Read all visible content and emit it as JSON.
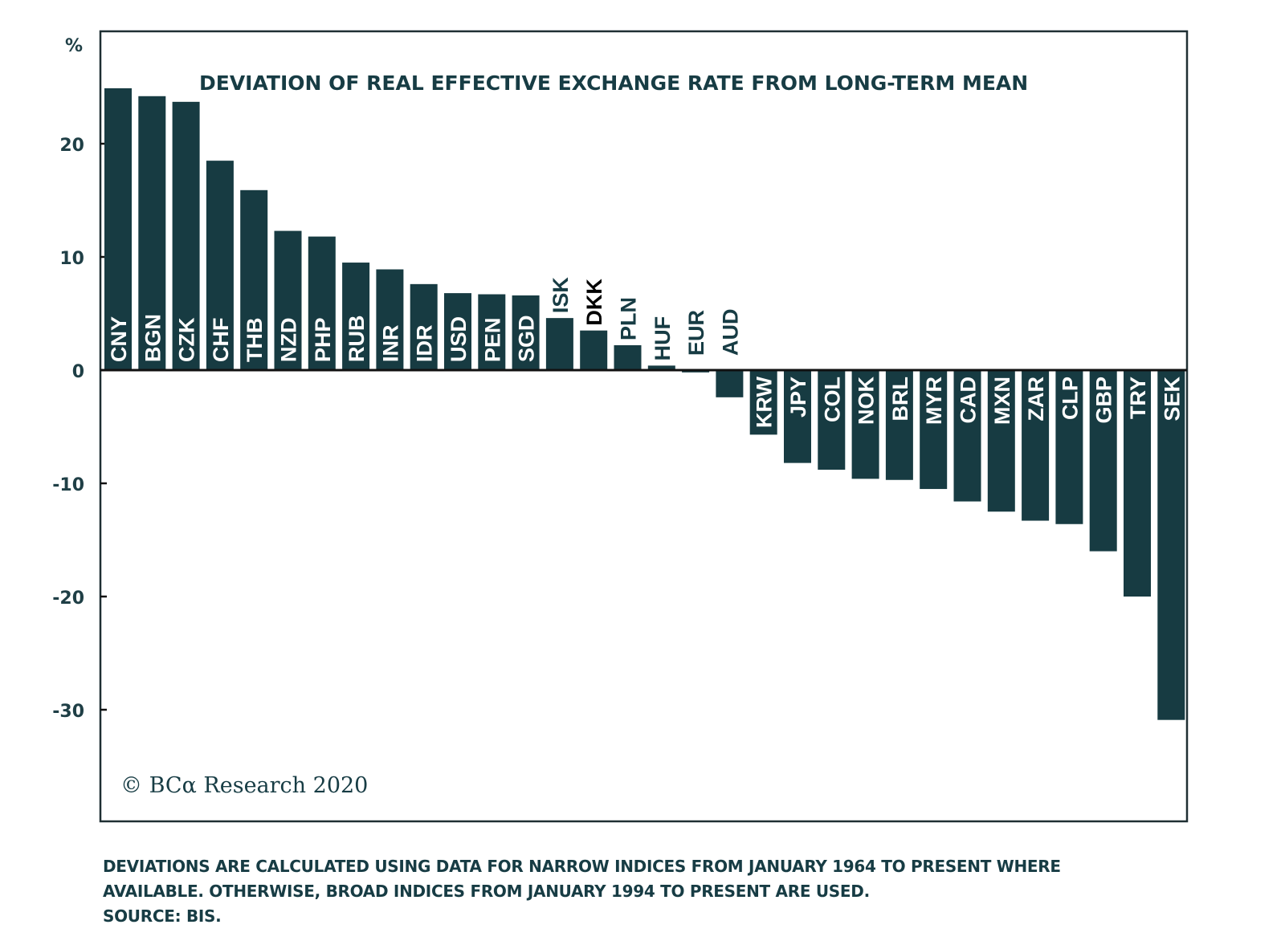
{
  "chart_data": {
    "type": "bar",
    "title": "DEVIATION OF REAL EFFECTIVE EXCHANGE RATE FROM LONG-TERM MEAN",
    "ylabel": "%",
    "xlabel": "",
    "ylim": [
      -40,
      30
    ],
    "yticks": [
      20,
      10,
      0,
      -10,
      -20,
      -30
    ],
    "ytick_labels": [
      "20",
      "10",
      "0",
      "-10",
      "-20",
      "-30"
    ],
    "grid": false,
    "bar_color": "#173b42",
    "categories": [
      "CNY",
      "BGN",
      "CZK",
      "CHF",
      "THB",
      "NZD",
      "PHP",
      "RUB",
      "INR",
      "IDR",
      "USD",
      "PEN",
      "SGD",
      "ISK",
      "DKK",
      "PLN",
      "HUF",
      "EUR",
      "AUD",
      "KRW",
      "JPY",
      "COL",
      "NOK",
      "BRL",
      "MYR",
      "CAD",
      "MXN",
      "ZAR",
      "CLP",
      "GBP",
      "TRY",
      "SEK"
    ],
    "values": [
      24.9,
      24.2,
      23.7,
      18.5,
      15.9,
      12.3,
      11.8,
      9.5,
      8.9,
      7.6,
      6.8,
      6.7,
      6.6,
      4.6,
      3.5,
      2.2,
      0.4,
      -0.2,
      -2.4,
      -5.7,
      -8.2,
      -8.8,
      -9.6,
      -9.7,
      -10.5,
      -11.6,
      -12.5,
      -13.3,
      -13.6,
      -16.0,
      -20.0,
      -30.9
    ],
    "label_colors": {
      "inside": "#ffffff",
      "outside": "#173c44",
      "highlight": {
        "DKK": "#000000"
      }
    },
    "annotation": "© BCα Research 2020"
  },
  "footnote": {
    "lines": [
      "DEVIATIONS ARE CALCULATED USING DATA FOR NARROW INDICES FROM JANUARY 1964 TO PRESENT WHERE",
      "AVAILABLE. OTHERWISE, BROAD INDICES FROM JANUARY 1994 TO PRESENT ARE USED.",
      "SOURCE: BIS."
    ]
  }
}
